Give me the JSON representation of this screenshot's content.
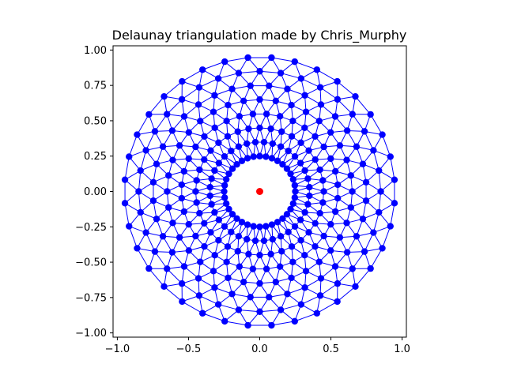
{
  "chart_data": {
    "type": "scatter",
    "title": "Delaunay triangulation made by Chris_Murphy",
    "xlabel": "",
    "ylabel": "",
    "xlim": [
      -1.03,
      1.03
    ],
    "ylim": [
      -1.03,
      1.03
    ],
    "x_ticks": [
      {
        "value": -1.0,
        "label": "−1.0"
      },
      {
        "value": -0.5,
        "label": "−0.5"
      },
      {
        "value": 0.0,
        "label": "0.0"
      },
      {
        "value": 0.5,
        "label": "0.5"
      },
      {
        "value": 1.0,
        "label": "1.0"
      }
    ],
    "y_ticks": [
      {
        "value": 1.0,
        "label": "1.00"
      },
      {
        "value": 0.75,
        "label": "0.75"
      },
      {
        "value": 0.5,
        "label": "0.50"
      },
      {
        "value": 0.25,
        "label": "0.25"
      },
      {
        "value": 0.0,
        "label": "0.00"
      },
      {
        "value": -0.25,
        "label": "−0.25"
      },
      {
        "value": -0.5,
        "label": "−0.50"
      },
      {
        "value": -0.75,
        "label": "−0.75"
      },
      {
        "value": -1.0,
        "label": "−1.00"
      }
    ],
    "grid": false,
    "mesh": {
      "description_source": "annular Delaunay mesh",
      "inner_radius": 0.25,
      "outer_radius": 0.95,
      "n_radii": 8,
      "n_angles": 36,
      "edge_color": "#0000ff",
      "node_color": "#0000ff"
    },
    "center_point": {
      "x": 0.0,
      "y": 0.0,
      "color": "#ff0000"
    }
  }
}
